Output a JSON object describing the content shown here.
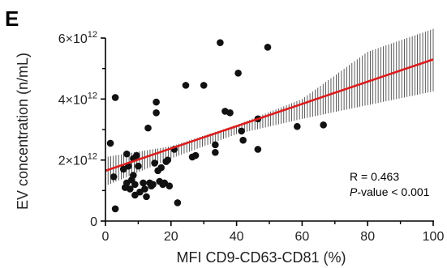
{
  "panel_label": "E",
  "chart_data": {
    "type": "scatter",
    "title": "",
    "xlabel": "MFI CD9-CD63-CD81 (%)",
    "ylabel": "EV concentration (n/mL)",
    "xlim": [
      0,
      100
    ],
    "ylim": [
      0,
      6
    ],
    "y_multiplier_label": "×10",
    "y_exponent": "12",
    "x_ticks": [
      "0",
      "20",
      "40",
      "60",
      "80",
      "100"
    ],
    "y_ticks": [
      "0",
      "2",
      "4",
      "6"
    ],
    "grid": false,
    "legend": "none",
    "points": [
      [
        1.5,
        2.55
      ],
      [
        2.5,
        1.45
      ],
      [
        3.0,
        4.05
      ],
      [
        3.0,
        0.4
      ],
      [
        5.5,
        1.7
      ],
      [
        6.0,
        1.1
      ],
      [
        6.5,
        1.25
      ],
      [
        6.5,
        2.2
      ],
      [
        7.0,
        1.8
      ],
      [
        7.5,
        1.05
      ],
      [
        8.0,
        1.35
      ],
      [
        8.5,
        1.5
      ],
      [
        8.5,
        2.05
      ],
      [
        9.0,
        1.2
      ],
      [
        9.0,
        0.85
      ],
      [
        9.5,
        2.15
      ],
      [
        10.0,
        1.8
      ],
      [
        10.5,
        0.95
      ],
      [
        11.5,
        1.25
      ],
      [
        12.0,
        1.05
      ],
      [
        12.5,
        0.8
      ],
      [
        13.0,
        3.05
      ],
      [
        13.5,
        1.25
      ],
      [
        14.0,
        1.15
      ],
      [
        14.5,
        1.2
      ],
      [
        15.0,
        1.9
      ],
      [
        15.5,
        3.55
      ],
      [
        15.5,
        3.9
      ],
      [
        16.0,
        1.65
      ],
      [
        16.5,
        1.3
      ],
      [
        17.0,
        1.75
      ],
      [
        17.5,
        1.2
      ],
      [
        18.0,
        1.25
      ],
      [
        18.5,
        1.95
      ],
      [
        19.0,
        2.0
      ],
      [
        19.5,
        1.15
      ],
      [
        21.0,
        2.35
      ],
      [
        22.0,
        0.6
      ],
      [
        24.5,
        4.45
      ],
      [
        26.5,
        2.1
      ],
      [
        27.5,
        2.15
      ],
      [
        30.0,
        4.45
      ],
      [
        33.5,
        2.5
      ],
      [
        33.5,
        2.25
      ],
      [
        35.0,
        5.85
      ],
      [
        36.5,
        3.6
      ],
      [
        38.0,
        3.55
      ],
      [
        40.5,
        4.85
      ],
      [
        41.5,
        2.95
      ],
      [
        42.0,
        2.65
      ],
      [
        46.5,
        3.35
      ],
      [
        46.5,
        2.35
      ],
      [
        49.5,
        5.7
      ],
      [
        58.5,
        3.1
      ],
      [
        66.5,
        3.15
      ]
    ],
    "regression_line": {
      "x": [
        0,
        100
      ],
      "y": [
        1.65,
        5.3
      ],
      "color": "#dd1c1c"
    },
    "confidence_band": {
      "x": [
        0,
        20,
        40,
        60,
        80,
        100
      ],
      "lower": [
        1.15,
        2.05,
        2.85,
        3.35,
        3.8,
        4.25
      ],
      "upper": [
        2.1,
        2.45,
        3.15,
        4.0,
        5.55,
        6.3
      ]
    },
    "annotations": [
      "R = 0.463",
      "P",
      "-value < 0.001"
    ]
  }
}
